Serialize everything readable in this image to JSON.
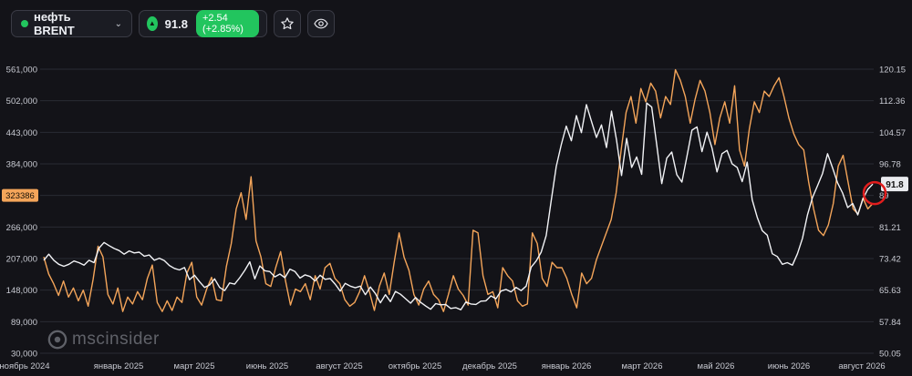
{
  "header": {
    "instrument": "нефть BRENT",
    "price": "91.8",
    "change": "+2.54 (+2.85%)",
    "colors": {
      "up": "#22c55e"
    },
    "icons": [
      "chevron-down-icon",
      "triangle-up-icon",
      "star-icon",
      "eye-icon"
    ]
  },
  "watermark": {
    "text": "mscinsider"
  },
  "chart_data": {
    "type": "line",
    "title": "",
    "xlabel": "",
    "ylabel": "",
    "grid": true,
    "x_ticks": [
      "ноябрь 2024",
      "январь 2025",
      "март 2025",
      "июнь 2025",
      "август 2025",
      "октябрь 2025",
      "декабрь 2025",
      "январь 2026",
      "март 2026",
      "май 2026",
      "июнь 2026",
      "август 2026"
    ],
    "y_left_ticks": [
      "561,000",
      "502,000",
      "443,000",
      "384,000",
      "323386",
      "266,000",
      "207,000",
      "148,000",
      "89,000",
      "30,000"
    ],
    "y_left_range": [
      30000,
      561000
    ],
    "y_right_ticks": [
      "120.15",
      "112.36",
      "104.57",
      "96.78",
      "89",
      "81.21",
      "73.42",
      "65.63",
      "57.84",
      "50.05"
    ],
    "y_right_range": [
      50.05,
      120.15
    ],
    "left_badge": "323386",
    "last_price_badge": "91.8",
    "series": [
      {
        "axis": "left",
        "color": "#f4a55a",
        "values": [
          210000,
          178000,
          160000,
          138000,
          165000,
          135000,
          152000,
          128000,
          148000,
          118000,
          168000,
          230000,
          210000,
          140000,
          122000,
          152000,
          108000,
          135000,
          122000,
          145000,
          130000,
          170000,
          195000,
          125000,
          108000,
          128000,
          110000,
          135000,
          125000,
          180000,
          200000,
          135000,
          120000,
          150000,
          172000,
          130000,
          128000,
          192000,
          235000,
          300000,
          330000,
          280000,
          360000,
          240000,
          210000,
          160000,
          155000,
          190000,
          220000,
          165000,
          120000,
          150000,
          145000,
          160000,
          130000,
          175000,
          150000,
          190000,
          198000,
          170000,
          160000,
          130000,
          118000,
          125000,
          145000,
          175000,
          145000,
          110000,
          155000,
          180000,
          140000,
          200000,
          255000,
          210000,
          185000,
          140000,
          120000,
          150000,
          165000,
          140000,
          130000,
          108000,
          140000,
          175000,
          150000,
          138000,
          120000,
          260000,
          255000,
          175000,
          140000,
          145000,
          115000,
          190000,
          175000,
          165000,
          128000,
          118000,
          122000,
          255000,
          235000,
          170000,
          155000,
          200000,
          190000,
          190000,
          170000,
          140000,
          115000,
          180000,
          160000,
          170000,
          205000,
          230000,
          255000,
          280000,
          330000,
          410000,
          480000,
          510000,
          460000,
          525000,
          500000,
          535000,
          520000,
          470000,
          510000,
          495000,
          560000,
          540000,
          510000,
          460000,
          505000,
          540000,
          520000,
          480000,
          420000,
          470000,
          500000,
          460000,
          530000,
          410000,
          380000,
          450000,
          500000,
          480000,
          520000,
          510000,
          530000,
          545000,
          510000,
          470000,
          440000,
          420000,
          410000,
          350000,
          300000,
          260000,
          250000,
          270000,
          310000,
          380000,
          400000,
          350000,
          300000,
          290000,
          320000,
          300000,
          310000
        ]
      },
      {
        "axis": "right",
        "color": "#f2f3f6",
        "values": [
          73.0,
          74.5,
          73.0,
          72.0,
          71.5,
          72.0,
          72.8,
          72.4,
          71.8,
          73.0,
          72.4,
          76.0,
          77.4,
          76.6,
          75.9,
          75.4,
          74.5,
          75.3,
          74.8,
          75.0,
          74.0,
          74.3,
          73.0,
          73.5,
          72.9,
          71.7,
          71.0,
          70.6,
          71.2,
          68.2,
          69.3,
          67.7,
          66.3,
          66.9,
          68.4,
          66.3,
          65.5,
          67.4,
          67.1,
          68.7,
          70.5,
          72.6,
          68.4,
          71.6,
          70.4,
          70.2,
          68.9,
          69.6,
          68.7,
          70.8,
          70.2,
          68.6,
          69.4,
          69.0,
          67.9,
          69.3,
          68.3,
          68.5,
          67.1,
          65.4,
          67.3,
          66.6,
          66.2,
          66.6,
          64.5,
          66.4,
          64.8,
          62.5,
          64.5,
          62.8,
          65.3,
          64.6,
          63.5,
          62.4,
          63.8,
          62.6,
          61.7,
          60.9,
          62.3,
          62.0,
          62.1,
          61.1,
          61.3,
          60.8,
          62.7,
          62.2,
          62.1,
          62.9,
          63.0,
          64.2,
          63.5,
          65.4,
          65.8,
          65.2,
          66.3,
          65.5,
          66.6,
          71.3,
          72.8,
          75.0,
          79.1,
          87.7,
          96.1,
          101.5,
          106.1,
          102.5,
          108.7,
          104.5,
          111.4,
          107.3,
          103.3,
          106.4,
          100.8,
          109.8,
          102.7,
          93.9,
          103.1,
          95.9,
          98.5,
          94.2,
          111.8,
          110.8,
          101.5,
          91.9,
          98.2,
          99.7,
          94.1,
          92.3,
          98.6,
          105.1,
          105.9,
          99.8,
          104.6,
          100.7,
          94.8,
          99.3,
          100.1,
          96.8,
          95.9,
          92.4,
          97.2,
          87.9,
          83.6,
          80.3,
          79.2,
          74.6,
          73.9,
          72.0,
          72.4,
          71.8,
          74.6,
          78.4,
          84.2,
          88.5,
          91.4,
          94.4,
          99.3,
          95.8,
          92.1,
          89.6,
          86.0,
          87.0,
          84.2,
          88.0,
          90.5,
          91.8
        ]
      }
    ]
  }
}
